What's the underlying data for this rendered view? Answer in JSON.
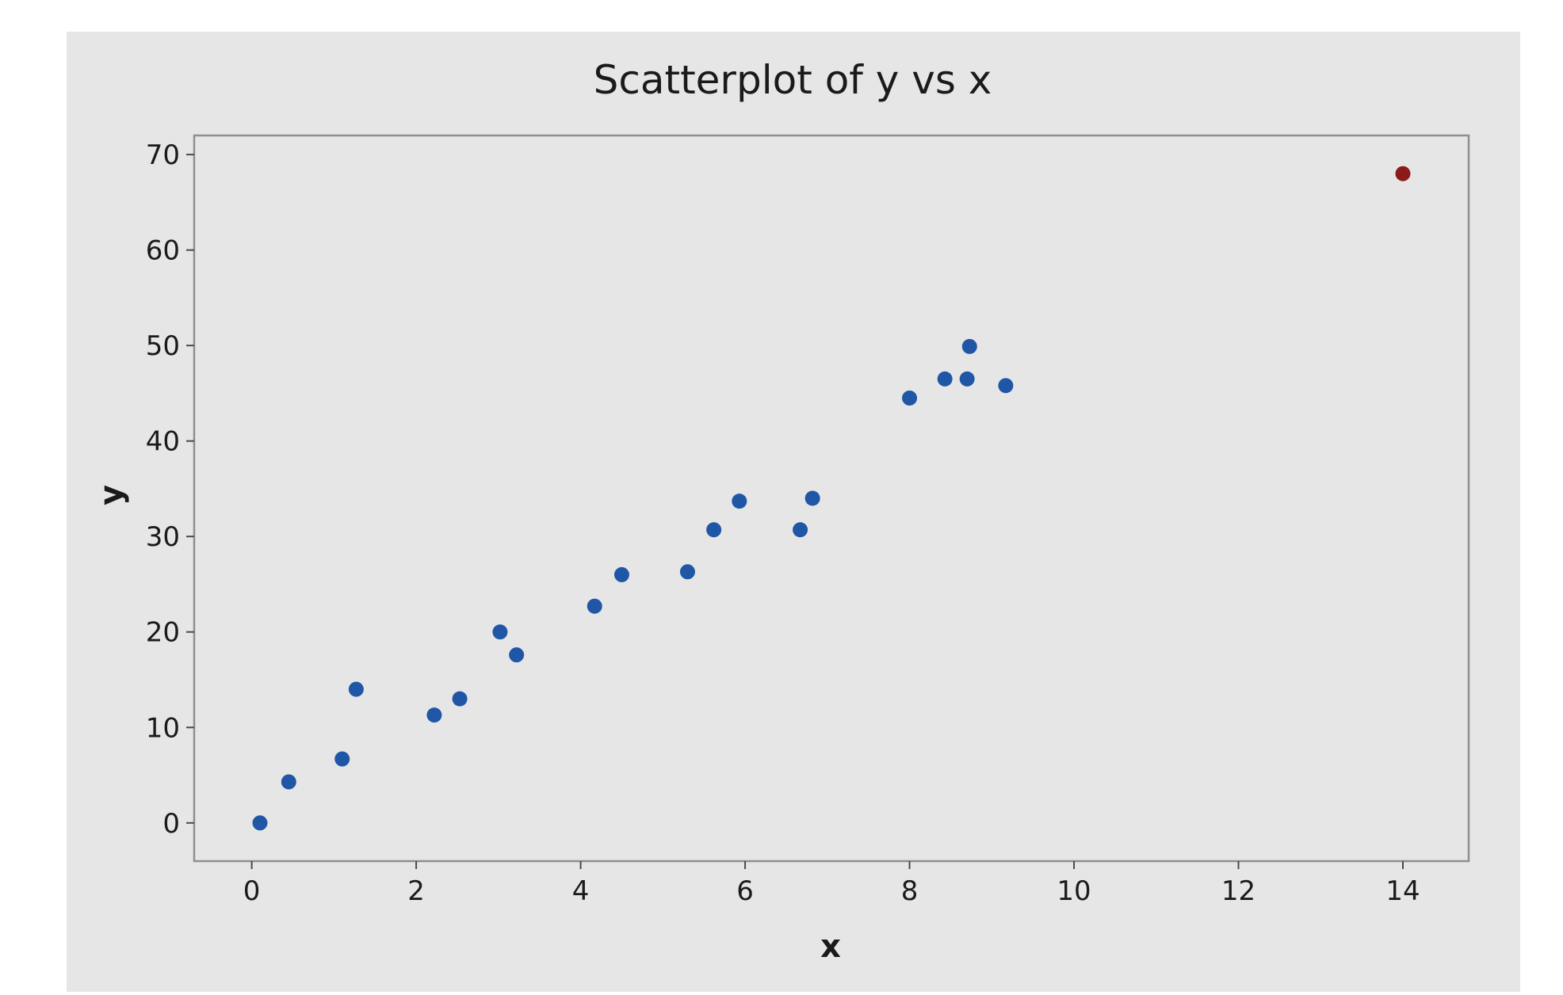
{
  "chart_data": {
    "type": "scatter",
    "title": "Scatterplot of y vs x",
    "xlabel": "x",
    "ylabel": "y",
    "xlim": [
      -0.7,
      14.8
    ],
    "ylim": [
      -4,
      72
    ],
    "x_ticks": [
      0,
      2,
      4,
      6,
      8,
      10,
      12,
      14
    ],
    "y_ticks": [
      0,
      10,
      20,
      30,
      40,
      50,
      60,
      70
    ],
    "grid": false,
    "legend": "none",
    "colors": {
      "page_background": "#e6e6e6",
      "plot_background": "#ffffff",
      "point": "#1f56a6",
      "outlier_point": "#8b1a1a"
    },
    "points": [
      {
        "x": 0.1,
        "y": 0.0
      },
      {
        "x": 0.45,
        "y": 4.3
      },
      {
        "x": 1.1,
        "y": 6.7
      },
      {
        "x": 1.27,
        "y": 14.0
      },
      {
        "x": 2.22,
        "y": 11.3
      },
      {
        "x": 2.53,
        "y": 13.0
      },
      {
        "x": 3.02,
        "y": 20.0
      },
      {
        "x": 3.22,
        "y": 17.6
      },
      {
        "x": 4.17,
        "y": 22.7
      },
      {
        "x": 4.5,
        "y": 26.0
      },
      {
        "x": 5.3,
        "y": 26.3
      },
      {
        "x": 5.62,
        "y": 30.7
      },
      {
        "x": 5.93,
        "y": 33.7
      },
      {
        "x": 6.67,
        "y": 30.7
      },
      {
        "x": 6.82,
        "y": 34.0
      },
      {
        "x": 8.0,
        "y": 44.5
      },
      {
        "x": 8.43,
        "y": 46.5
      },
      {
        "x": 8.7,
        "y": 46.5
      },
      {
        "x": 8.73,
        "y": 49.9
      },
      {
        "x": 9.17,
        "y": 45.8
      },
      {
        "x": 14.0,
        "y": 68.0,
        "highlight": true
      }
    ]
  }
}
